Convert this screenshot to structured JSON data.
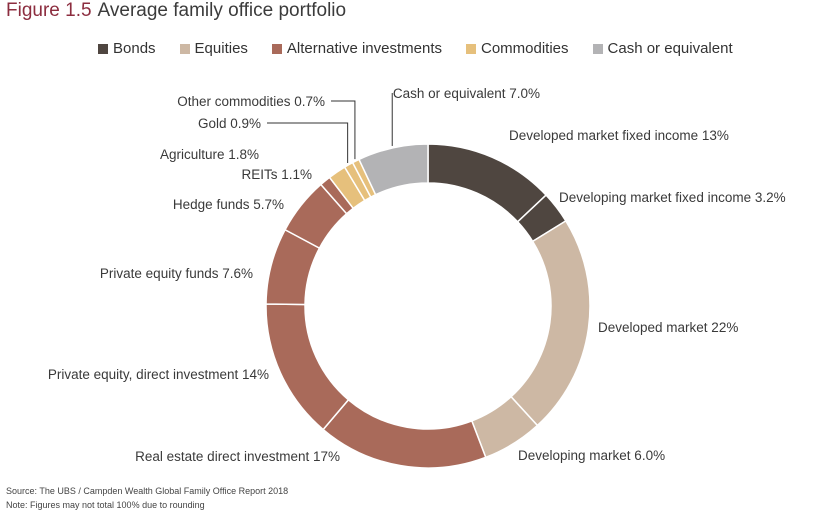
{
  "title": {
    "number": "Figure 1.5",
    "text": "Average family office portfolio"
  },
  "legend": [
    {
      "label": "Bonds",
      "color": "#4f4640"
    },
    {
      "label": "Equities",
      "color": "#cdb8a4"
    },
    {
      "label": "Alternative investments",
      "color": "#a96a5a"
    },
    {
      "label": "Commodities",
      "color": "#e6c07c"
    },
    {
      "label": "Cash or equivalent",
      "color": "#b3b3b5"
    }
  ],
  "chart_data": {
    "type": "pie",
    "donut": true,
    "title": "Average family office portfolio",
    "slices": [
      {
        "label": "Developed market fixed income",
        "value": 13,
        "display": "13%",
        "group": "Bonds",
        "color": "#4f4640"
      },
      {
        "label": "Developing market fixed income",
        "value": 3.2,
        "display": "3.2%",
        "group": "Bonds",
        "color": "#4f4640"
      },
      {
        "label": "Developed market",
        "value": 22,
        "display": "22%",
        "group": "Equities",
        "color": "#cdb8a4"
      },
      {
        "label": "Developing market",
        "value": 6.0,
        "display": "6.0%",
        "group": "Equities",
        "color": "#cdb8a4"
      },
      {
        "label": "Real estate direct investment",
        "value": 17,
        "display": "17%",
        "group": "Alternative investments",
        "color": "#a96a5a"
      },
      {
        "label": "Private equity, direct investment",
        "value": 14,
        "display": "14%",
        "group": "Alternative investments",
        "color": "#a96a5a"
      },
      {
        "label": "Private equity funds",
        "value": 7.6,
        "display": "7.6%",
        "group": "Alternative investments",
        "color": "#a96a5a"
      },
      {
        "label": "Hedge funds",
        "value": 5.7,
        "display": "5.7%",
        "group": "Alternative investments",
        "color": "#a96a5a"
      },
      {
        "label": "REITs",
        "value": 1.1,
        "display": "1.1%",
        "group": "Alternative investments",
        "color": "#a96a5a"
      },
      {
        "label": "Agriculture",
        "value": 1.8,
        "display": "1.8%",
        "group": "Commodities",
        "color": "#e6c07c"
      },
      {
        "label": "Gold",
        "value": 0.9,
        "display": "0.9%",
        "group": "Commodities",
        "color": "#e6c07c"
      },
      {
        "label": "Other commodities",
        "value": 0.7,
        "display": "0.7%",
        "group": "Commodities",
        "color": "#e6c07c"
      },
      {
        "label": "Cash or equivalent",
        "value": 7.0,
        "display": "7.0%",
        "group": "Cash or equivalent",
        "color": "#b3b3b5"
      }
    ]
  },
  "footer": {
    "source": "Source: The UBS / Campden Wealth Global Family Office Report 2018",
    "note": "Note: Figures may not total 100% due to rounding"
  }
}
